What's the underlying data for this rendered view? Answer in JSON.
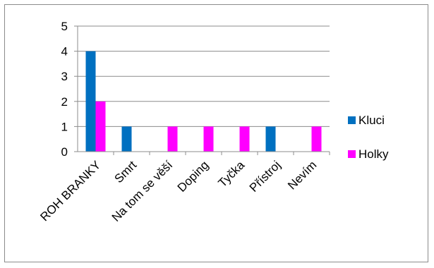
{
  "chart_data": {
    "type": "bar",
    "categories": [
      "ROH BRANKY",
      "Smrt",
      "Na tom se věší",
      "Doping",
      "Tyčka",
      "Přístroj",
      "Nevím"
    ],
    "series": [
      {
        "name": "Kluci",
        "color": "#0070C0",
        "values": [
          4,
          1,
          0,
          0,
          0,
          1,
          0
        ]
      },
      {
        "name": "Holky",
        "color": "#FF00FF",
        "values": [
          2,
          0,
          1,
          1,
          1,
          0,
          1
        ]
      }
    ],
    "ylim": [
      0,
      5
    ],
    "yticks": [
      "0",
      "1",
      "2",
      "3",
      "4",
      "5"
    ],
    "grid": true,
    "legend": "right"
  }
}
